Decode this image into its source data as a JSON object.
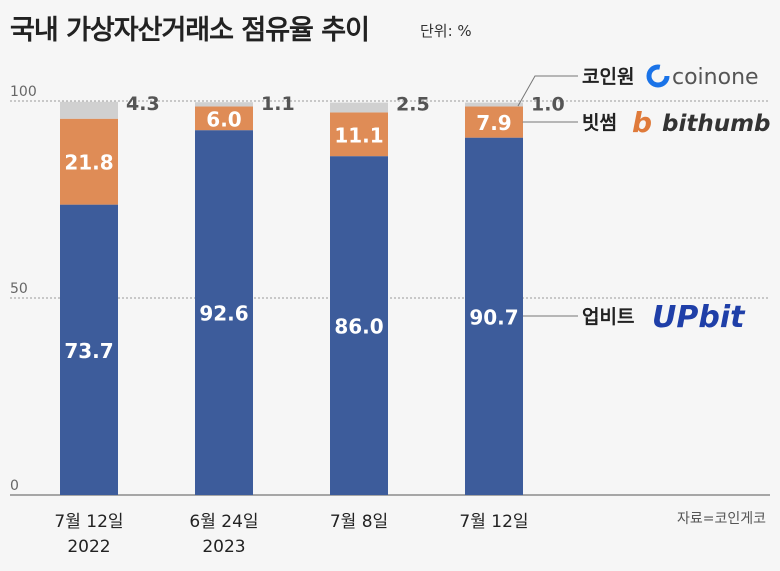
{
  "title": "국내 가상자산거래소 점유율 추이",
  "unit": "단위: %",
  "source": "자료=코인게코",
  "chart_data": {
    "type": "bar",
    "stacked": true,
    "categories": [
      [
        "7월 12일",
        "2022"
      ],
      [
        "6월 24일",
        "2023"
      ],
      [
        "7월 8일",
        ""
      ],
      [
        "7월 12일",
        ""
      ]
    ],
    "series": [
      {
        "name": "업비트",
        "logo": "UPbit",
        "color": "#3d5c9b",
        "values": [
          73.7,
          92.6,
          86.0,
          90.7
        ]
      },
      {
        "name": "빗썸",
        "logo": "bithumb",
        "color": "#df8c56",
        "values": [
          21.8,
          6.0,
          11.1,
          7.9
        ]
      },
      {
        "name": "코인원",
        "logo": "coinone",
        "color": "#d0d0d0",
        "values": [
          4.3,
          1.1,
          2.5,
          1.0
        ]
      }
    ],
    "ylim": [
      0,
      100
    ],
    "yticks": [
      0,
      50,
      100
    ],
    "legend": "right"
  }
}
